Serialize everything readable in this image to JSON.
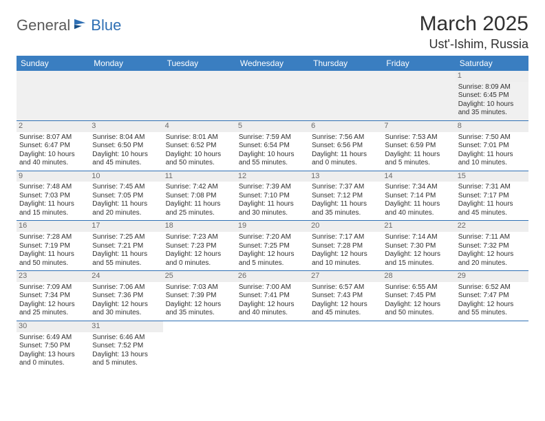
{
  "logo": {
    "part1": "General",
    "part2": "Blue"
  },
  "title": "March 2025",
  "location": "Ust'-Ishim, Russia",
  "colors": {
    "header_bg": "#3a7ec1",
    "header_text": "#ffffff",
    "rule": "#2e6fb4",
    "daynum_bg": "#eeeeee",
    "daynum_text": "#6a6a6a",
    "body_text": "#303030",
    "logo_gray": "#5a5a5a",
    "logo_blue": "#2e6fb4",
    "blank_bg": "#f0f0f0"
  },
  "weekdays": [
    "Sunday",
    "Monday",
    "Tuesday",
    "Wednesday",
    "Thursday",
    "Friday",
    "Saturday"
  ],
  "weeks": [
    [
      null,
      null,
      null,
      null,
      null,
      null,
      {
        "n": "1",
        "sr": "Sunrise: 8:09 AM",
        "ss": "Sunset: 6:45 PM",
        "d1": "Daylight: 10 hours",
        "d2": "and 35 minutes."
      }
    ],
    [
      {
        "n": "2",
        "sr": "Sunrise: 8:07 AM",
        "ss": "Sunset: 6:47 PM",
        "d1": "Daylight: 10 hours",
        "d2": "and 40 minutes."
      },
      {
        "n": "3",
        "sr": "Sunrise: 8:04 AM",
        "ss": "Sunset: 6:50 PM",
        "d1": "Daylight: 10 hours",
        "d2": "and 45 minutes."
      },
      {
        "n": "4",
        "sr": "Sunrise: 8:01 AM",
        "ss": "Sunset: 6:52 PM",
        "d1": "Daylight: 10 hours",
        "d2": "and 50 minutes."
      },
      {
        "n": "5",
        "sr": "Sunrise: 7:59 AM",
        "ss": "Sunset: 6:54 PM",
        "d1": "Daylight: 10 hours",
        "d2": "and 55 minutes."
      },
      {
        "n": "6",
        "sr": "Sunrise: 7:56 AM",
        "ss": "Sunset: 6:56 PM",
        "d1": "Daylight: 11 hours",
        "d2": "and 0 minutes."
      },
      {
        "n": "7",
        "sr": "Sunrise: 7:53 AM",
        "ss": "Sunset: 6:59 PM",
        "d1": "Daylight: 11 hours",
        "d2": "and 5 minutes."
      },
      {
        "n": "8",
        "sr": "Sunrise: 7:50 AM",
        "ss": "Sunset: 7:01 PM",
        "d1": "Daylight: 11 hours",
        "d2": "and 10 minutes."
      }
    ],
    [
      {
        "n": "9",
        "sr": "Sunrise: 7:48 AM",
        "ss": "Sunset: 7:03 PM",
        "d1": "Daylight: 11 hours",
        "d2": "and 15 minutes."
      },
      {
        "n": "10",
        "sr": "Sunrise: 7:45 AM",
        "ss": "Sunset: 7:05 PM",
        "d1": "Daylight: 11 hours",
        "d2": "and 20 minutes."
      },
      {
        "n": "11",
        "sr": "Sunrise: 7:42 AM",
        "ss": "Sunset: 7:08 PM",
        "d1": "Daylight: 11 hours",
        "d2": "and 25 minutes."
      },
      {
        "n": "12",
        "sr": "Sunrise: 7:39 AM",
        "ss": "Sunset: 7:10 PM",
        "d1": "Daylight: 11 hours",
        "d2": "and 30 minutes."
      },
      {
        "n": "13",
        "sr": "Sunrise: 7:37 AM",
        "ss": "Sunset: 7:12 PM",
        "d1": "Daylight: 11 hours",
        "d2": "and 35 minutes."
      },
      {
        "n": "14",
        "sr": "Sunrise: 7:34 AM",
        "ss": "Sunset: 7:14 PM",
        "d1": "Daylight: 11 hours",
        "d2": "and 40 minutes."
      },
      {
        "n": "15",
        "sr": "Sunrise: 7:31 AM",
        "ss": "Sunset: 7:17 PM",
        "d1": "Daylight: 11 hours",
        "d2": "and 45 minutes."
      }
    ],
    [
      {
        "n": "16",
        "sr": "Sunrise: 7:28 AM",
        "ss": "Sunset: 7:19 PM",
        "d1": "Daylight: 11 hours",
        "d2": "and 50 minutes."
      },
      {
        "n": "17",
        "sr": "Sunrise: 7:25 AM",
        "ss": "Sunset: 7:21 PM",
        "d1": "Daylight: 11 hours",
        "d2": "and 55 minutes."
      },
      {
        "n": "18",
        "sr": "Sunrise: 7:23 AM",
        "ss": "Sunset: 7:23 PM",
        "d1": "Daylight: 12 hours",
        "d2": "and 0 minutes."
      },
      {
        "n": "19",
        "sr": "Sunrise: 7:20 AM",
        "ss": "Sunset: 7:25 PM",
        "d1": "Daylight: 12 hours",
        "d2": "and 5 minutes."
      },
      {
        "n": "20",
        "sr": "Sunrise: 7:17 AM",
        "ss": "Sunset: 7:28 PM",
        "d1": "Daylight: 12 hours",
        "d2": "and 10 minutes."
      },
      {
        "n": "21",
        "sr": "Sunrise: 7:14 AM",
        "ss": "Sunset: 7:30 PM",
        "d1": "Daylight: 12 hours",
        "d2": "and 15 minutes."
      },
      {
        "n": "22",
        "sr": "Sunrise: 7:11 AM",
        "ss": "Sunset: 7:32 PM",
        "d1": "Daylight: 12 hours",
        "d2": "and 20 minutes."
      }
    ],
    [
      {
        "n": "23",
        "sr": "Sunrise: 7:09 AM",
        "ss": "Sunset: 7:34 PM",
        "d1": "Daylight: 12 hours",
        "d2": "and 25 minutes."
      },
      {
        "n": "24",
        "sr": "Sunrise: 7:06 AM",
        "ss": "Sunset: 7:36 PM",
        "d1": "Daylight: 12 hours",
        "d2": "and 30 minutes."
      },
      {
        "n": "25",
        "sr": "Sunrise: 7:03 AM",
        "ss": "Sunset: 7:39 PM",
        "d1": "Daylight: 12 hours",
        "d2": "and 35 minutes."
      },
      {
        "n": "26",
        "sr": "Sunrise: 7:00 AM",
        "ss": "Sunset: 7:41 PM",
        "d1": "Daylight: 12 hours",
        "d2": "and 40 minutes."
      },
      {
        "n": "27",
        "sr": "Sunrise: 6:57 AM",
        "ss": "Sunset: 7:43 PM",
        "d1": "Daylight: 12 hours",
        "d2": "and 45 minutes."
      },
      {
        "n": "28",
        "sr": "Sunrise: 6:55 AM",
        "ss": "Sunset: 7:45 PM",
        "d1": "Daylight: 12 hours",
        "d2": "and 50 minutes."
      },
      {
        "n": "29",
        "sr": "Sunrise: 6:52 AM",
        "ss": "Sunset: 7:47 PM",
        "d1": "Daylight: 12 hours",
        "d2": "and 55 minutes."
      }
    ],
    [
      {
        "n": "30",
        "sr": "Sunrise: 6:49 AM",
        "ss": "Sunset: 7:50 PM",
        "d1": "Daylight: 13 hours",
        "d2": "and 0 minutes."
      },
      {
        "n": "31",
        "sr": "Sunrise: 6:46 AM",
        "ss": "Sunset: 7:52 PM",
        "d1": "Daylight: 13 hours",
        "d2": "and 5 minutes."
      },
      null,
      null,
      null,
      null,
      null
    ]
  ]
}
